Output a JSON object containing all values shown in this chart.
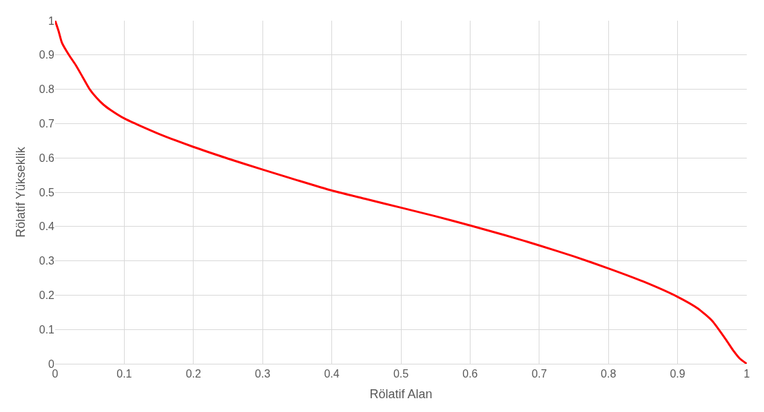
{
  "chart_data": {
    "type": "line",
    "xlabel": "Rölatif Alan",
    "ylabel": "Rölatif Yükseklik",
    "x": [
      0,
      0.005,
      0.01,
      0.02,
      0.03,
      0.04,
      0.05,
      0.06,
      0.07,
      0.08,
      0.1,
      0.15,
      0.2,
      0.25,
      0.3,
      0.35,
      0.4,
      0.45,
      0.5,
      0.55,
      0.6,
      0.65,
      0.7,
      0.75,
      0.8,
      0.85,
      0.9,
      0.93,
      0.95,
      0.97,
      0.98,
      0.99,
      1
    ],
    "series": [
      {
        "color": "#ff0000",
        "values": [
          1,
          0.97,
          0.935,
          0.9,
          0.87,
          0.835,
          0.8,
          0.775,
          0.755,
          0.74,
          0.715,
          0.67,
          0.632,
          0.598,
          0.566,
          0.535,
          0.505,
          0.48,
          0.455,
          0.43,
          0.403,
          0.375,
          0.345,
          0.313,
          0.278,
          0.24,
          0.195,
          0.16,
          0.125,
          0.07,
          0.04,
          0.015,
          0
        ]
      }
    ],
    "xlim": [
      0,
      1
    ],
    "ylim": [
      0,
      1
    ],
    "xticks": [
      0,
      0.1,
      0.2,
      0.3,
      0.4,
      0.5,
      0.6,
      0.7,
      0.8,
      0.9,
      1
    ],
    "yticks": [
      0,
      0.1,
      0.2,
      0.3,
      0.4,
      0.5,
      0.6,
      0.7,
      0.8,
      0.9,
      1
    ],
    "grid": true,
    "marker": "none",
    "line_style": "solid"
  }
}
